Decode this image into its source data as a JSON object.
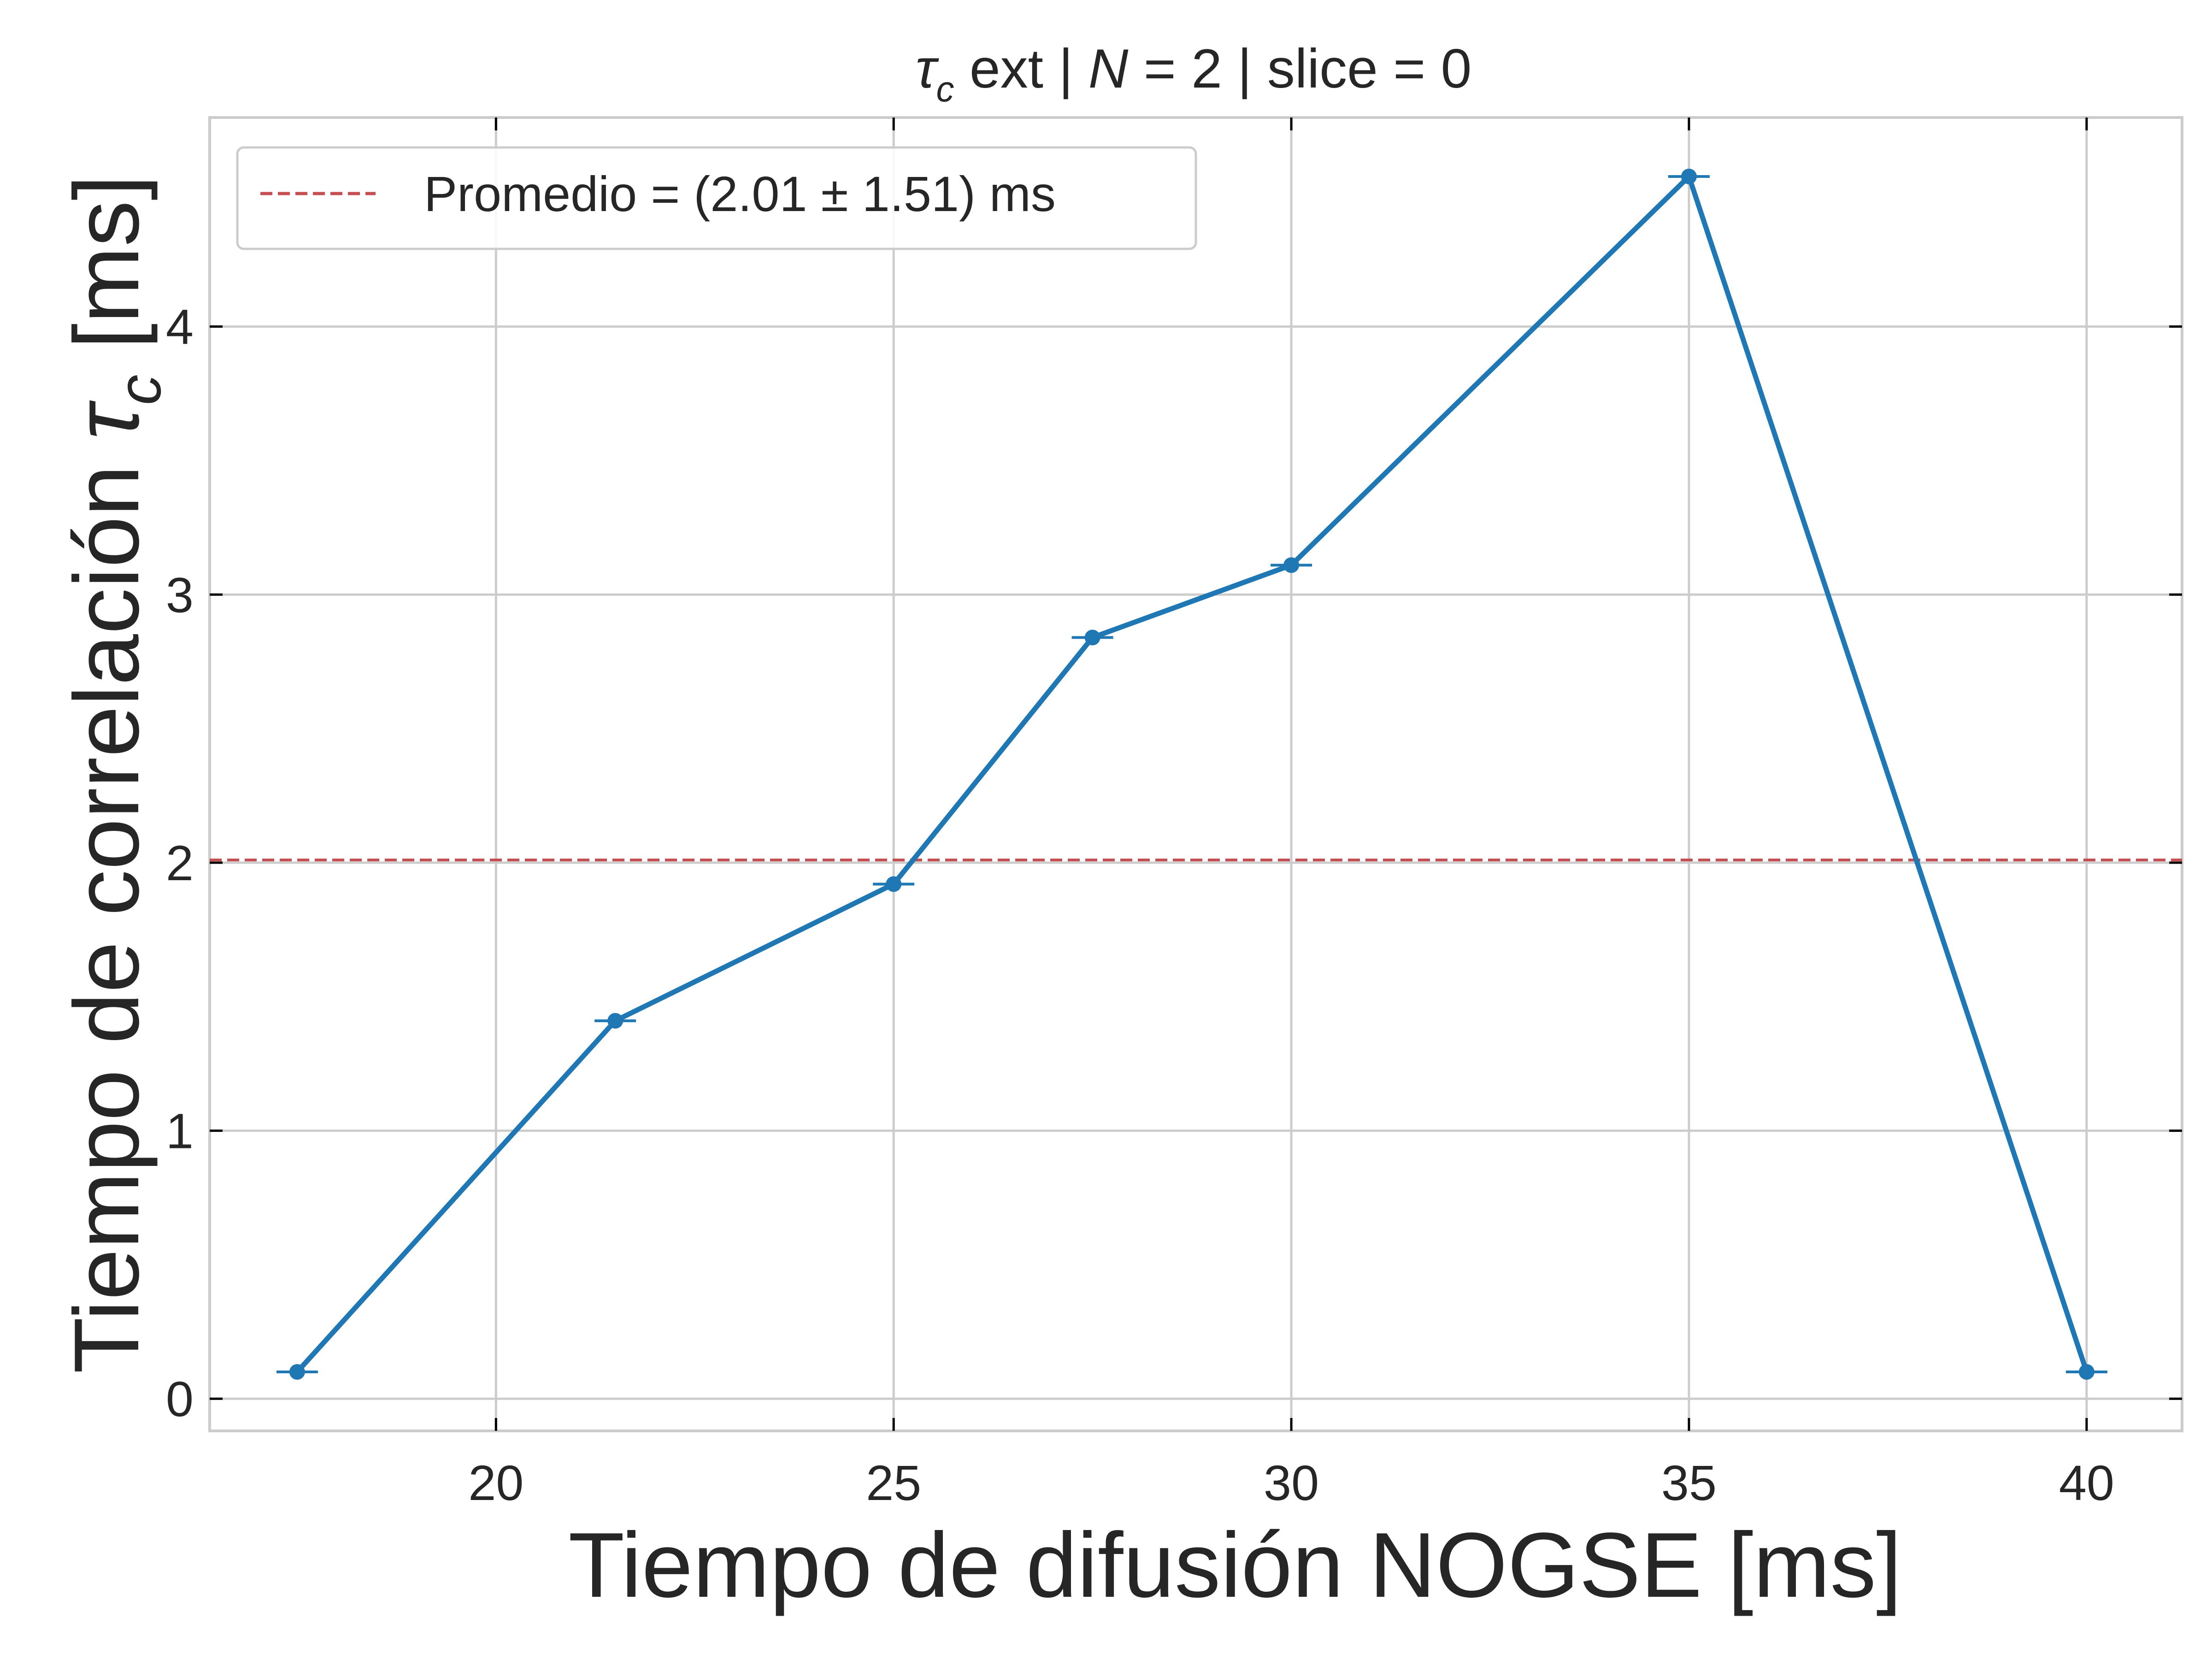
{
  "chart_data": {
    "type": "line",
    "title": {
      "symbol": "τ",
      "subscript": "c",
      "rest_1": " ext | ",
      "n_symbol": "N",
      "rest_2": " = 2 | slice = 0"
    },
    "xlabel": "Tiempo de difusión NOGSE [ms]",
    "ylabel": {
      "prefix": "Tiempo de correlación ",
      "symbol": "τ",
      "subscript": "c",
      "suffix": " [ms]"
    },
    "xlim": [
      16.4,
      41.2
    ],
    "ylim": [
      -0.12,
      4.78
    ],
    "xticks": [
      20,
      25,
      30,
      35,
      40
    ],
    "yticks": [
      0,
      1,
      2,
      3,
      4
    ],
    "grid": true,
    "legend_position": "upper-left",
    "series": [
      {
        "x": [
          17.5,
          21.5,
          25,
          27.5,
          30,
          35,
          40
        ],
        "y": [
          0.1,
          1.41,
          1.92,
          2.84,
          3.11,
          4.56,
          0.1
        ],
        "yerr": [
          0.01,
          0.01,
          0.01,
          0.01,
          0.01,
          0.01,
          0.01
        ],
        "color": "#1f77b4"
      }
    ],
    "reference_line": {
      "y": 2.01,
      "label": "Promedio = (2.01 ± 1.51) ms",
      "color": "#c44e52",
      "style": "dashed"
    }
  },
  "colors": {
    "grid": "#cccccc",
    "spine": "#cccccc",
    "text": "#262626"
  }
}
